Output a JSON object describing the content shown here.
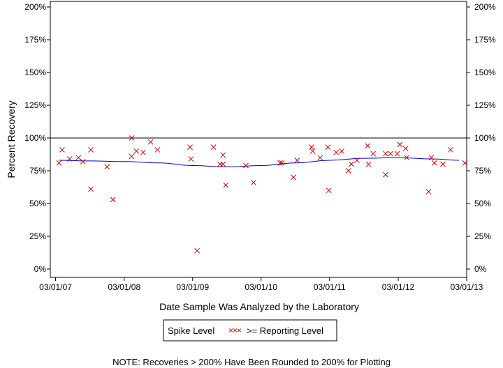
{
  "chart_data": {
    "type": "scatter",
    "xlabel": "Date Sample Was Analyzed by the Laboratory",
    "ylabel": "Percent Recovery",
    "ylim": [
      0,
      200
    ],
    "xlim": [
      "2007-02-01",
      "2013-03-01"
    ],
    "y_ticks": [
      0,
      25,
      50,
      75,
      100,
      125,
      150,
      175,
      200
    ],
    "y_tick_labels": [
      "0%",
      "25%",
      "50%",
      "75%",
      "100%",
      "125%",
      "150%",
      "175%",
      "200%"
    ],
    "x_ticks": [
      "2007-03-01",
      "2008-03-01",
      "2009-03-01",
      "2010-03-01",
      "2011-03-01",
      "2012-03-01",
      "2013-03-01"
    ],
    "x_tick_labels": [
      "03/01/07",
      "03/01/08",
      "03/01/09",
      "03/01/10",
      "03/01/11",
      "03/01/12",
      "03/01/13"
    ],
    "reference_line": 100,
    "grid": false,
    "legend_position": "bottom-center",
    "series": [
      {
        "name": "Spike Level",
        "type": "line",
        "color": "#0000cc",
        "points": [
          {
            "x": "2007-03-20",
            "y": 83
          },
          {
            "x": "2007-09-01",
            "y": 82.5
          },
          {
            "x": "2008-03-01",
            "y": 82
          },
          {
            "x": "2008-09-01",
            "y": 81
          },
          {
            "x": "2009-03-01",
            "y": 79
          },
          {
            "x": "2009-09-01",
            "y": 78
          },
          {
            "x": "2010-03-01",
            "y": 79
          },
          {
            "x": "2010-09-01",
            "y": 81
          },
          {
            "x": "2011-03-01",
            "y": 83
          },
          {
            "x": "2011-09-01",
            "y": 84.5
          },
          {
            "x": "2012-03-01",
            "y": 85
          },
          {
            "x": "2012-09-01",
            "y": 84
          },
          {
            "x": "2013-01-20",
            "y": 83
          }
        ]
      },
      {
        "name": ">= Reporting Level",
        "type": "scatter",
        "color": "#cc0000",
        "marker": "x",
        "points": [
          {
            "x": "2007-03-20",
            "y": 81
          },
          {
            "x": "2007-04-05",
            "y": 91
          },
          {
            "x": "2007-05-15",
            "y": 84
          },
          {
            "x": "2007-07-01",
            "y": 85
          },
          {
            "x": "2007-07-25",
            "y": 82
          },
          {
            "x": "2007-09-05",
            "y": 91
          },
          {
            "x": "2007-09-05",
            "y": 61
          },
          {
            "x": "2007-12-01",
            "y": 78
          },
          {
            "x": "2008-01-01",
            "y": 53
          },
          {
            "x": "2008-04-10",
            "y": 100
          },
          {
            "x": "2008-04-10",
            "y": 86
          },
          {
            "x": "2008-05-05",
            "y": 90
          },
          {
            "x": "2008-06-10",
            "y": 89
          },
          {
            "x": "2008-07-20",
            "y": 97
          },
          {
            "x": "2008-08-25",
            "y": 91
          },
          {
            "x": "2009-02-15",
            "y": 93
          },
          {
            "x": "2009-02-20",
            "y": 84
          },
          {
            "x": "2009-03-25",
            "y": 14
          },
          {
            "x": "2009-06-20",
            "y": 93
          },
          {
            "x": "2009-07-25",
            "y": 80
          },
          {
            "x": "2009-08-10",
            "y": 87
          },
          {
            "x": "2009-08-10",
            "y": 80
          },
          {
            "x": "2009-08-25",
            "y": 64
          },
          {
            "x": "2009-12-10",
            "y": 79
          },
          {
            "x": "2010-01-20",
            "y": 66
          },
          {
            "x": "2010-06-10",
            "y": 81
          },
          {
            "x": "2010-06-20",
            "y": 81
          },
          {
            "x": "2010-08-20",
            "y": 70
          },
          {
            "x": "2010-09-10",
            "y": 83
          },
          {
            "x": "2010-11-25",
            "y": 93
          },
          {
            "x": "2010-12-01",
            "y": 90
          },
          {
            "x": "2011-01-10",
            "y": 85
          },
          {
            "x": "2011-02-20",
            "y": 93
          },
          {
            "x": "2011-02-25",
            "y": 60
          },
          {
            "x": "2011-04-05",
            "y": 89
          },
          {
            "x": "2011-05-05",
            "y": 90
          },
          {
            "x": "2011-06-10",
            "y": 75
          },
          {
            "x": "2011-06-25",
            "y": 80
          },
          {
            "x": "2011-07-25",
            "y": 83
          },
          {
            "x": "2011-09-20",
            "y": 94
          },
          {
            "x": "2011-09-25",
            "y": 80
          },
          {
            "x": "2011-10-20",
            "y": 88
          },
          {
            "x": "2011-12-25",
            "y": 88
          },
          {
            "x": "2011-12-25",
            "y": 72
          },
          {
            "x": "2012-01-20",
            "y": 88
          },
          {
            "x": "2012-02-25",
            "y": 88
          },
          {
            "x": "2012-03-10",
            "y": 95
          },
          {
            "x": "2012-04-10",
            "y": 92
          },
          {
            "x": "2012-04-15",
            "y": 85
          },
          {
            "x": "2012-08-10",
            "y": 59
          },
          {
            "x": "2012-08-25",
            "y": 85
          },
          {
            "x": "2012-09-10",
            "y": 81
          },
          {
            "x": "2012-10-25",
            "y": 80
          },
          {
            "x": "2012-12-05",
            "y": 91
          },
          {
            "x": "2013-02-20",
            "y": 81
          }
        ]
      }
    ],
    "note": "NOTE: Recoveries > 200% Have Been Rounded to 200% for Plotting"
  }
}
